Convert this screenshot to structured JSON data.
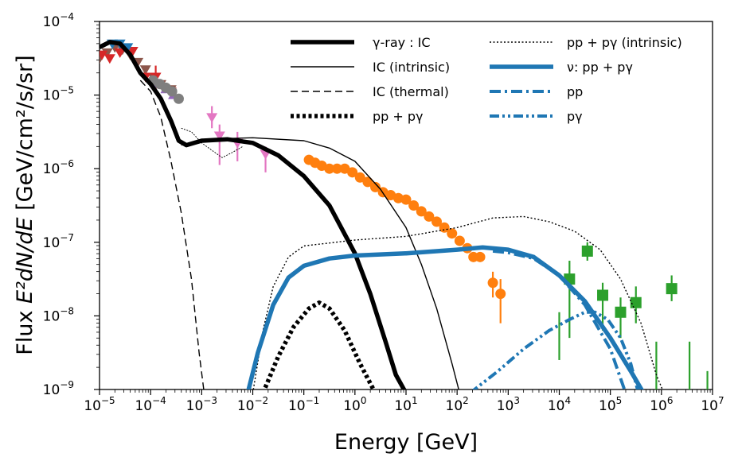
{
  "chart_data": {
    "type": "line",
    "title": "",
    "xlabel": "Energy [GeV]",
    "ylabel_prefix": "Flux ",
    "ylabel_math": "E²dN/dE",
    "ylabel_units": " [GeV/cm²/s/sr]",
    "xscale": "log",
    "yscale": "log",
    "xlim": [
      1e-05,
      10000000.0
    ],
    "ylim": [
      1e-09,
      0.0001
    ],
    "x_ticks": [
      {
        "base": "10",
        "exp": "−5"
      },
      {
        "base": "10",
        "exp": "−4"
      },
      {
        "base": "10",
        "exp": "−3"
      },
      {
        "base": "10",
        "exp": "−2"
      },
      {
        "base": "10",
        "exp": "−1"
      },
      {
        "base": "10",
        "exp": "0"
      },
      {
        "base": "10",
        "exp": "1"
      },
      {
        "base": "10",
        "exp": "2"
      },
      {
        "base": "10",
        "exp": "3"
      },
      {
        "base": "10",
        "exp": "4"
      },
      {
        "base": "10",
        "exp": "5"
      },
      {
        "base": "10",
        "exp": "6"
      },
      {
        "base": "10",
        "exp": "7"
      }
    ],
    "y_ticks": [
      {
        "base": "10",
        "exp": "−9"
      },
      {
        "base": "10",
        "exp": "−8"
      },
      {
        "base": "10",
        "exp": "−7"
      },
      {
        "base": "10",
        "exp": "−6"
      },
      {
        "base": "10",
        "exp": "−5"
      },
      {
        "base": "10",
        "exp": "−4"
      }
    ],
    "legend_position": "top-right",
    "legend": [
      {
        "label": "γ-ray : IC",
        "series": "gamma_ic"
      },
      {
        "label": "IC (intrinsic)",
        "series": "ic_intrinsic"
      },
      {
        "label": "IC (thermal)",
        "series": "ic_thermal"
      },
      {
        "label": "pp + pγ",
        "series": "pp_pgamma"
      },
      {
        "label": "pp + pγ (intrinsic)",
        "series": "pp_pgamma_intrinsic"
      },
      {
        "label": "ν: pp + pγ",
        "series": "nu_total"
      },
      {
        "label": "pp",
        "series": "nu_pp"
      },
      {
        "label": "pγ",
        "series": "nu_pgamma"
      }
    ],
    "series": [
      {
        "id": "gamma_ic",
        "name": "γ-ray : IC",
        "color": "#000000",
        "style": "solid-thick",
        "points": [
          [
            -5,
            -4.35
          ],
          [
            -4.8,
            -4.28
          ],
          [
            -4.6,
            -4.3
          ],
          [
            -4.4,
            -4.45
          ],
          [
            -4.2,
            -4.7
          ],
          [
            -4,
            -4.85
          ],
          [
            -3.8,
            -5.05
          ],
          [
            -3.6,
            -5.35
          ],
          [
            -3.45,
            -5.62
          ],
          [
            -3.3,
            -5.68
          ],
          [
            -3,
            -5.62
          ],
          [
            -2.5,
            -5.6
          ],
          [
            -2,
            -5.65
          ],
          [
            -1.5,
            -5.82
          ],
          [
            -1,
            -6.1
          ],
          [
            -0.5,
            -6.5
          ],
          [
            0,
            -7.15
          ],
          [
            0.3,
            -7.7
          ],
          [
            0.6,
            -8.35
          ],
          [
            0.8,
            -8.8
          ],
          [
            1,
            -9.05
          ]
        ]
      },
      {
        "id": "ic_intrinsic",
        "name": "IC (intrinsic)",
        "color": "#000000",
        "style": "solid-thin",
        "points": [
          [
            -3.4,
            -5.68
          ],
          [
            -3,
            -5.6
          ],
          [
            -2,
            -5.58
          ],
          [
            -1,
            -5.62
          ],
          [
            -0.5,
            -5.72
          ],
          [
            0,
            -5.9
          ],
          [
            0.5,
            -6.28
          ],
          [
            1,
            -6.8
          ],
          [
            1.3,
            -7.3
          ],
          [
            1.6,
            -7.9
          ],
          [
            1.9,
            -8.65
          ],
          [
            2.05,
            -9.05
          ]
        ]
      },
      {
        "id": "ic_thermal",
        "name": "IC (thermal)",
        "color": "#000000",
        "style": "dashed",
        "points": [
          [
            -4.2,
            -4.8
          ],
          [
            -4,
            -4.95
          ],
          [
            -3.8,
            -5.3
          ],
          [
            -3.6,
            -5.9
          ],
          [
            -3.4,
            -6.6
          ],
          [
            -3.2,
            -7.5
          ],
          [
            -3.05,
            -8.5
          ],
          [
            -2.95,
            -9.05
          ]
        ]
      },
      {
        "id": "pp_pgamma",
        "name": "pp + pγ",
        "color": "#000000",
        "style": "dotted-thick",
        "points": [
          [
            -1.8,
            -9.05
          ],
          [
            -1.5,
            -8.55
          ],
          [
            -1.2,
            -8.15
          ],
          [
            -0.9,
            -7.9
          ],
          [
            -0.7,
            -7.82
          ],
          [
            -0.5,
            -7.9
          ],
          [
            -0.2,
            -8.2
          ],
          [
            0.1,
            -8.65
          ],
          [
            0.4,
            -9.05
          ]
        ]
      },
      {
        "id": "pp_pgamma_intrinsic",
        "name": "pp + pγ (intrinsic)",
        "color": "#000000",
        "style": "dotted-thin",
        "points": [
          [
            -2,
            -9.05
          ],
          [
            -1.8,
            -8.2
          ],
          [
            -1.6,
            -7.6
          ],
          [
            -1.3,
            -7.2
          ],
          [
            -1,
            -7.05
          ],
          [
            0,
            -6.97
          ],
          [
            1,
            -6.92
          ],
          [
            2,
            -6.8
          ],
          [
            2.7,
            -6.67
          ],
          [
            3.3,
            -6.65
          ],
          [
            3.8,
            -6.72
          ],
          [
            4.3,
            -6.85
          ],
          [
            4.8,
            -7.1
          ],
          [
            5.2,
            -7.5
          ],
          [
            5.6,
            -8.1
          ],
          [
            5.9,
            -8.8
          ],
          [
            6.05,
            -9.05
          ]
        ]
      },
      {
        "id": "nu_total",
        "name": "ν: pp + pγ",
        "color": "#1f77b4",
        "style": "solid-thick",
        "points": [
          [
            -2.1,
            -9.05
          ],
          [
            -1.9,
            -8.5
          ],
          [
            -1.6,
            -7.85
          ],
          [
            -1.3,
            -7.48
          ],
          [
            -1,
            -7.32
          ],
          [
            -0.5,
            -7.22
          ],
          [
            0,
            -7.18
          ],
          [
            1,
            -7.15
          ],
          [
            2,
            -7.1
          ],
          [
            2.5,
            -7.07
          ],
          [
            3,
            -7.1
          ],
          [
            3.5,
            -7.2
          ],
          [
            4,
            -7.45
          ],
          [
            4.5,
            -7.8
          ],
          [
            5,
            -8.3
          ],
          [
            5.4,
            -8.75
          ],
          [
            5.65,
            -9.05
          ]
        ]
      },
      {
        "id": "nu_pp",
        "name": "pp",
        "color": "#1f77b4",
        "style": "dashdot",
        "points": [
          [
            2.7,
            -7.12
          ],
          [
            3,
            -7.14
          ],
          [
            3.5,
            -7.22
          ],
          [
            4,
            -7.45
          ],
          [
            4.5,
            -7.85
          ],
          [
            5,
            -8.45
          ],
          [
            5.3,
            -9.05
          ]
        ]
      },
      {
        "id": "nu_pgamma",
        "name": "pγ",
        "color": "#1f77b4",
        "style": "dashdotdot",
        "points": [
          [
            2.25,
            -9.05
          ],
          [
            2.8,
            -8.75
          ],
          [
            3.3,
            -8.45
          ],
          [
            3.8,
            -8.2
          ],
          [
            4.2,
            -8.05
          ],
          [
            4.5,
            -7.95
          ],
          [
            4.7,
            -7.95
          ],
          [
            4.95,
            -8.05
          ],
          [
            5.2,
            -8.3
          ],
          [
            5.4,
            -8.65
          ],
          [
            5.55,
            -9.05
          ]
        ]
      },
      {
        "id": "data_orange",
        "name": "orange data",
        "color": "#ff7f0e",
        "style": "markers-circle",
        "points": [
          [
            -0.9,
            -5.88
          ],
          [
            -0.78,
            -5.92
          ],
          [
            -0.65,
            -5.96
          ],
          [
            -0.5,
            -6.0
          ],
          [
            -0.35,
            -6.0
          ],
          [
            -0.2,
            -6.0
          ],
          [
            -0.05,
            -6.05
          ],
          [
            0.1,
            -6.12
          ],
          [
            0.25,
            -6.18
          ],
          [
            0.4,
            -6.25
          ],
          [
            0.55,
            -6.32
          ],
          [
            0.7,
            -6.36
          ],
          [
            0.85,
            -6.4
          ],
          [
            1.0,
            -6.42
          ],
          [
            1.15,
            -6.5
          ],
          [
            1.3,
            -6.58
          ],
          [
            1.45,
            -6.65
          ],
          [
            1.6,
            -6.72
          ],
          [
            1.75,
            -6.8
          ],
          [
            1.9,
            -6.88
          ],
          [
            2.05,
            -6.98
          ],
          [
            2.2,
            -7.08
          ],
          [
            2.32,
            -7.2
          ],
          [
            2.45,
            -7.2
          ],
          [
            2.7,
            -7.55
          ],
          [
            2.85,
            -7.7
          ]
        ],
        "errors": [
          [
            2.7,
            -7.75,
            -7.4
          ],
          [
            2.85,
            -8.1,
            -7.5
          ]
        ]
      },
      {
        "id": "data_green",
        "name": "green data",
        "color": "#2ca02c",
        "style": "markers-square",
        "points": [
          [
            4.2,
            -7.5
          ],
          [
            4.55,
            -7.12
          ],
          [
            4.85,
            -7.72
          ],
          [
            5.2,
            -7.95
          ],
          [
            5.5,
            -7.82
          ],
          [
            6.2,
            -7.63
          ]
        ],
        "errors": [
          [
            4.2,
            -8.3,
            -7.25
          ],
          [
            4.55,
            -7.25,
            -7.0
          ],
          [
            4.85,
            -8.2,
            -7.55
          ],
          [
            5.2,
            -8.3,
            -7.75
          ],
          [
            5.5,
            -8.1,
            -7.6
          ],
          [
            6.2,
            -7.8,
            -7.45
          ]
        ],
        "upper_limits": [
          [
            4.0,
            -8.6,
            -7.95
          ],
          [
            5.9,
            -9.0,
            -8.35
          ],
          [
            6.55,
            -9.0,
            -8.35
          ],
          [
            6.9,
            -9.0,
            -8.75
          ]
        ]
      },
      {
        "id": "data_pink",
        "name": "pink data",
        "color": "#e377c2",
        "style": "markers-tri-down",
        "points": [
          [
            -2.8,
            -5.3
          ],
          [
            -2.65,
            -5.55
          ],
          [
            -2.3,
            -5.65
          ],
          [
            -1.75,
            -5.8
          ]
        ],
        "errors": [
          [
            -2.8,
            -5.45,
            -5.15
          ],
          [
            -2.65,
            -5.95,
            -5.4
          ],
          [
            -2.3,
            -5.9,
            -5.5
          ],
          [
            -1.75,
            -6.05,
            -5.7
          ]
        ]
      },
      {
        "id": "data_red",
        "name": "red data",
        "color": "#d62728",
        "style": "markers-tri-down",
        "points": [
          [
            -4.95,
            -4.45
          ],
          [
            -4.8,
            -4.5
          ],
          [
            -4.6,
            -4.42
          ],
          [
            -4.35,
            -4.4
          ],
          [
            -4.1,
            -4.75
          ],
          [
            -3.9,
            -4.75
          ],
          [
            -3.6,
            -4.95
          ]
        ],
        "errors": [
          [
            -3.9,
            -4.95,
            -4.6
          ]
        ]
      },
      {
        "id": "data_blue",
        "name": "blue data",
        "color": "#1f77b4",
        "style": "markers-tri-down",
        "points": [
          [
            -4.75,
            -4.3
          ],
          [
            -4.6,
            -4.3
          ],
          [
            -4.45,
            -4.35
          ]
        ]
      },
      {
        "id": "data_purple",
        "name": "purple data",
        "color": "#9467bd",
        "style": "markers-tri-up",
        "points": [
          [
            -3.85,
            -4.85
          ],
          [
            -3.7,
            -4.92
          ],
          [
            -3.55,
            -5.0
          ]
        ]
      },
      {
        "id": "data_brown",
        "name": "brown data",
        "color": "#8c564b",
        "style": "markers-tri-down",
        "points": [
          [
            -5,
            -4.5
          ],
          [
            -4.85,
            -4.42
          ],
          [
            -4.7,
            -4.35
          ],
          [
            -4.55,
            -4.38
          ],
          [
            -4.4,
            -4.45
          ],
          [
            -4.25,
            -4.55
          ],
          [
            -4.1,
            -4.65
          ],
          [
            -3.95,
            -4.75
          ],
          [
            -3.8,
            -4.85
          ],
          [
            -3.6,
            -4.92
          ]
        ]
      },
      {
        "id": "data_gray",
        "name": "gray data",
        "color": "#7f7f7f",
        "style": "markers-circle",
        "points": [
          [
            -3.95,
            -4.8
          ],
          [
            -3.82,
            -4.85
          ],
          [
            -3.7,
            -4.9
          ],
          [
            -3.58,
            -4.95
          ],
          [
            -3.45,
            -5.05
          ]
        ]
      },
      {
        "id": "fermi_band",
        "name": "sub-GeV residual",
        "color": "#000000",
        "style": "solid-hair",
        "points": [
          [
            -3.4,
            -5.45
          ],
          [
            -3.2,
            -5.5
          ],
          [
            -3.0,
            -5.65
          ],
          [
            -2.8,
            -5.75
          ],
          [
            -2.6,
            -5.85
          ],
          [
            -2.4,
            -5.78
          ],
          [
            -2.2,
            -5.7
          ]
        ]
      }
    ]
  }
}
